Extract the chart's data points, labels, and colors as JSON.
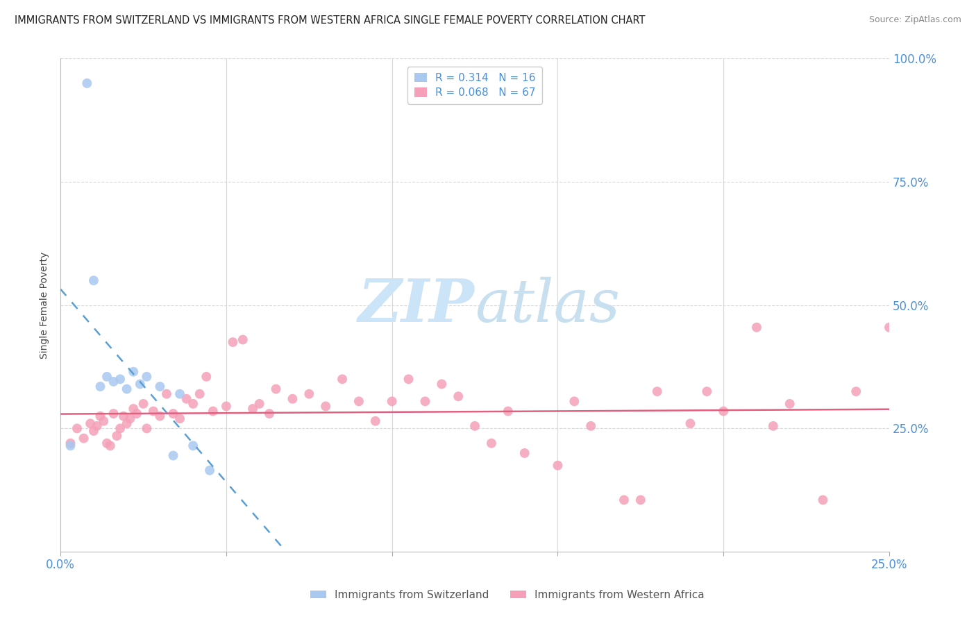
{
  "title": "IMMIGRANTS FROM SWITZERLAND VS IMMIGRANTS FROM WESTERN AFRICA SINGLE FEMALE POVERTY CORRELATION CHART",
  "source": "Source: ZipAtlas.com",
  "ylabel": "Single Female Poverty",
  "xlim": [
    0.0,
    0.25
  ],
  "ylim": [
    0.0,
    1.0
  ],
  "xtick_positions": [
    0.0,
    0.05,
    0.1,
    0.15,
    0.2,
    0.25
  ],
  "xtick_labels": [
    "0.0%",
    "",
    "",
    "",
    "",
    "25.0%"
  ],
  "ytick_positions_right": [
    1.0,
    0.75,
    0.5,
    0.25
  ],
  "ytick_labels_right": [
    "100.0%",
    "75.0%",
    "50.0%",
    "25.0%"
  ],
  "background_color": "#ffffff",
  "switzerland_color": "#a8c8f0",
  "western_africa_color": "#f5a0b8",
  "trend_switzerland_color": "#5a9fd4",
  "trend_western_africa_color": "#e06080",
  "r_switzerland": 0.314,
  "n_switzerland": 16,
  "r_western_africa": 0.068,
  "n_western_africa": 67,
  "switzerland_x": [
    0.003,
    0.008,
    0.01,
    0.012,
    0.014,
    0.016,
    0.018,
    0.02,
    0.022,
    0.024,
    0.026,
    0.03,
    0.034,
    0.036,
    0.04,
    0.045
  ],
  "switzerland_y": [
    0.215,
    0.95,
    0.55,
    0.335,
    0.355,
    0.345,
    0.35,
    0.33,
    0.365,
    0.34,
    0.355,
    0.335,
    0.195,
    0.32,
    0.215,
    0.165
  ],
  "western_africa_x": [
    0.003,
    0.005,
    0.007,
    0.009,
    0.01,
    0.011,
    0.012,
    0.013,
    0.014,
    0.015,
    0.016,
    0.017,
    0.018,
    0.019,
    0.02,
    0.021,
    0.022,
    0.023,
    0.025,
    0.026,
    0.028,
    0.03,
    0.032,
    0.034,
    0.036,
    0.038,
    0.04,
    0.042,
    0.044,
    0.046,
    0.05,
    0.052,
    0.055,
    0.058,
    0.06,
    0.063,
    0.065,
    0.07,
    0.075,
    0.08,
    0.085,
    0.09,
    0.095,
    0.1,
    0.105,
    0.11,
    0.115,
    0.12,
    0.125,
    0.13,
    0.135,
    0.14,
    0.15,
    0.155,
    0.16,
    0.17,
    0.175,
    0.18,
    0.19,
    0.195,
    0.2,
    0.21,
    0.215,
    0.22,
    0.23,
    0.24,
    0.25
  ],
  "western_africa_y": [
    0.22,
    0.25,
    0.23,
    0.26,
    0.245,
    0.255,
    0.275,
    0.265,
    0.22,
    0.215,
    0.28,
    0.235,
    0.25,
    0.275,
    0.26,
    0.27,
    0.29,
    0.28,
    0.3,
    0.25,
    0.285,
    0.275,
    0.32,
    0.28,
    0.27,
    0.31,
    0.3,
    0.32,
    0.355,
    0.285,
    0.295,
    0.425,
    0.43,
    0.29,
    0.3,
    0.28,
    0.33,
    0.31,
    0.32,
    0.295,
    0.35,
    0.305,
    0.265,
    0.305,
    0.35,
    0.305,
    0.34,
    0.315,
    0.255,
    0.22,
    0.285,
    0.2,
    0.175,
    0.305,
    0.255,
    0.105,
    0.105,
    0.325,
    0.26,
    0.325,
    0.285,
    0.455,
    0.255,
    0.3,
    0.105,
    0.325,
    0.455
  ],
  "watermark_zip_color": "#cce4f8",
  "watermark_atlas_color": "#c8dff0",
  "axis_label_color": "#4a90d9",
  "axis_tick_color": "#4a90d9",
  "grid_color": "#d8d8d8",
  "title_fontsize": 10.5,
  "source_fontsize": 9,
  "axis_label_fontsize": 10,
  "legend_fontsize": 11,
  "marker_size": 100
}
